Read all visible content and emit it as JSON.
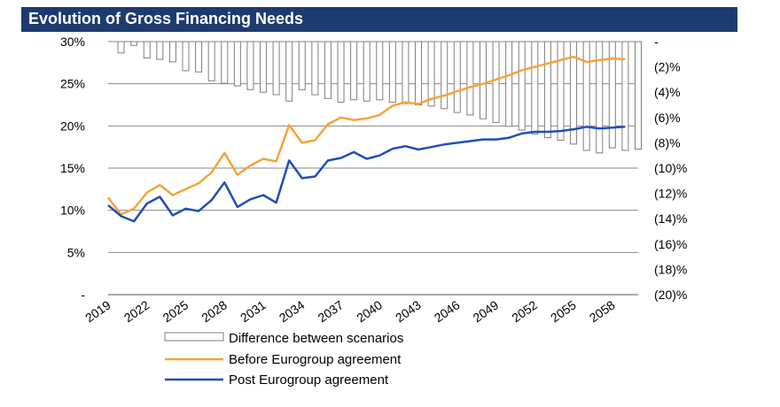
{
  "title": "Evolution of Gross Financing Needs",
  "colors": {
    "header_bg": "#1d3b6e",
    "before": "#f5a43a",
    "post": "#1f4fb5",
    "bar_stroke": "#7f7f7f",
    "bar_fill": "#ffffff",
    "grid": "#888888"
  },
  "chart_data": {
    "type": "line+bar",
    "title": "Evolution of Gross Financing Needs",
    "x_tick_labels": [
      "2019",
      "2022",
      "2025",
      "2028",
      "2031",
      "2034",
      "2037",
      "2040",
      "2043",
      "2046",
      "2049",
      "2052",
      "2055",
      "2058"
    ],
    "x_start": 2019,
    "x_end": 2060,
    "left_axis": {
      "ylim": [
        0,
        30
      ],
      "ticks": [
        0,
        5,
        10,
        15,
        20,
        25,
        30
      ],
      "tick_labels": [
        "-",
        "5%",
        "10%",
        "15%",
        "20%",
        "25%",
        "30%"
      ]
    },
    "right_axis": {
      "ylim": [
        -20,
        0
      ],
      "ticks": [
        0,
        -2,
        -4,
        -6,
        -8,
        -10,
        -12,
        -14,
        -16,
        -18,
        -20
      ],
      "tick_labels": [
        "-",
        "(2)%",
        "(4)%",
        "(6)%",
        "(8)%",
        "(10)%",
        "(12)%",
        "(14)%",
        "(16)%",
        "(18)%",
        "(20)%"
      ]
    },
    "series": [
      {
        "name": "Difference between scenarios",
        "type": "bar",
        "axis": "right",
        "x": [
          2020,
          2021,
          2022,
          2023,
          2024,
          2025,
          2026,
          2027,
          2028,
          2029,
          2030,
          2031,
          2032,
          2033,
          2034,
          2035,
          2036,
          2037,
          2038,
          2039,
          2040,
          2041,
          2042,
          2043,
          2044,
          2045,
          2046,
          2047,
          2048,
          2049,
          2050,
          2051,
          2052,
          2053,
          2054,
          2055,
          2056,
          2057,
          2058,
          2059,
          2060
        ],
        "values": [
          -0.9,
          -0.3,
          -1.3,
          -1.4,
          -1.6,
          -2.3,
          -2.4,
          -3.1,
          -3.3,
          -3.5,
          -3.8,
          -4.0,
          -4.2,
          -4.7,
          -3.8,
          -4.2,
          -4.5,
          -4.8,
          -4.6,
          -4.7,
          -4.6,
          -4.8,
          -4.9,
          -5.0,
          -5.1,
          -5.3,
          -5.6,
          -5.8,
          -6.1,
          -6.4,
          -6.7,
          -7.0,
          -7.3,
          -7.6,
          -7.8,
          -8.1,
          -8.6,
          -8.8,
          -8.4,
          -8.6,
          -8.5
        ]
      },
      {
        "name": "Before Eurogroup agreement",
        "type": "line",
        "axis": "left",
        "x": [
          2019,
          2020,
          2021,
          2022,
          2023,
          2024,
          2025,
          2026,
          2027,
          2028,
          2029,
          2030,
          2031,
          2032,
          2033,
          2034,
          2035,
          2036,
          2037,
          2038,
          2039,
          2040,
          2041,
          2042,
          2043,
          2044,
          2045,
          2046,
          2047,
          2048,
          2049,
          2050,
          2051,
          2052,
          2053,
          2054,
          2055,
          2056,
          2057,
          2058,
          2059
        ],
        "values": [
          11.5,
          9.5,
          10.2,
          12.1,
          13.0,
          11.8,
          12.5,
          13.2,
          14.5,
          16.8,
          14.2,
          15.3,
          16.1,
          15.8,
          20.1,
          18.0,
          18.3,
          20.2,
          21.0,
          20.7,
          20.9,
          21.3,
          22.4,
          22.8,
          22.6,
          23.2,
          23.6,
          24.1,
          24.6,
          25.0,
          25.5,
          26.0,
          26.6,
          27.0,
          27.4,
          27.8,
          28.2,
          27.6,
          27.8,
          28.0,
          27.9
        ]
      },
      {
        "name": "Post Eurogroup agreement",
        "type": "line",
        "axis": "left",
        "x": [
          2019,
          2020,
          2021,
          2022,
          2023,
          2024,
          2025,
          2026,
          2027,
          2028,
          2029,
          2030,
          2031,
          2032,
          2033,
          2034,
          2035,
          2036,
          2037,
          2038,
          2039,
          2040,
          2041,
          2042,
          2043,
          2044,
          2045,
          2046,
          2047,
          2048,
          2049,
          2050,
          2051,
          2052,
          2053,
          2054,
          2055,
          2056,
          2057,
          2058,
          2059
        ],
        "values": [
          10.6,
          9.3,
          8.7,
          10.8,
          11.6,
          9.4,
          10.2,
          9.9,
          11.2,
          13.3,
          10.4,
          11.3,
          11.8,
          10.9,
          15.9,
          13.8,
          14.0,
          15.9,
          16.2,
          16.9,
          16.1,
          16.5,
          17.3,
          17.6,
          17.2,
          17.5,
          17.8,
          18.0,
          18.2,
          18.4,
          18.4,
          18.6,
          19.1,
          19.3,
          19.3,
          19.4,
          19.6,
          19.9,
          19.7,
          19.8,
          19.9
        ]
      }
    ],
    "legend": [
      {
        "label": "Difference between scenarios",
        "kind": "bar"
      },
      {
        "label": "Before Eurogroup agreement",
        "kind": "line-before"
      },
      {
        "label": "Post Eurogroup agreement",
        "kind": "line-post"
      }
    ],
    "legend_placement": "bottom"
  }
}
